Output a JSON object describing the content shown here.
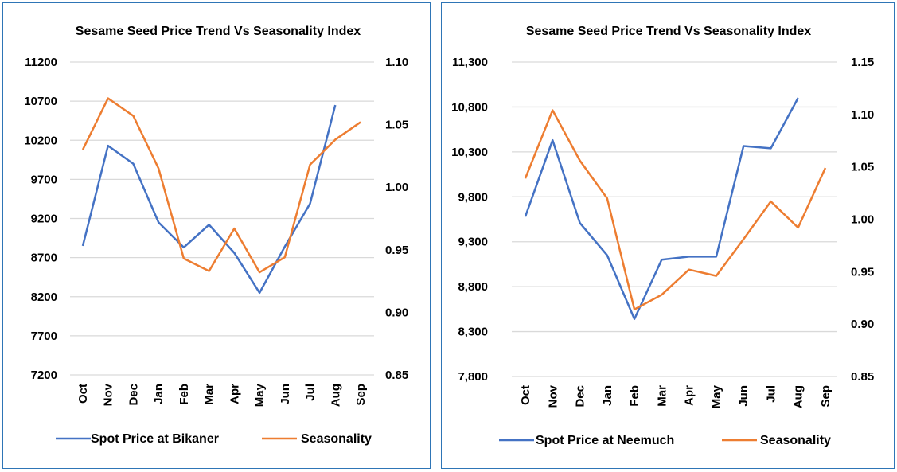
{
  "colors": {
    "price": "#4472C4",
    "seasonality": "#ED7D31",
    "grid": "#D9D9D9",
    "border": "#2E75B6"
  },
  "chart_data": [
    {
      "type": "line",
      "title": "Sesame Seed Price Trend  Vs Seasonality Index",
      "categories": [
        "Oct",
        "Nov",
        "Dec",
        "Jan",
        "Feb",
        "Mar",
        "Apr",
        "May",
        "Jun",
        "Jul",
        "Aug",
        "Sep"
      ],
      "y_left": {
        "range": [
          7200,
          11200
        ],
        "ticks": [
          "7200",
          "7700",
          "8200",
          "8700",
          "9200",
          "9700",
          "10200",
          "10700",
          "11200"
        ]
      },
      "y_right": {
        "range": [
          0.85,
          1.1
        ],
        "ticks": [
          "0.85",
          "0.90",
          "0.95",
          "1.00",
          "1.05",
          "1.10"
        ]
      },
      "grid": true,
      "legend_position": "bottom",
      "series": [
        {
          "name": "Spot Price at Bikaner",
          "axis": "left",
          "values": [
            8850,
            10130,
            9900,
            9150,
            8830,
            9120,
            8760,
            8250,
            8840,
            9390,
            10650,
            null
          ]
        },
        {
          "name": "Seasonality",
          "axis": "right",
          "values": [
            1.03,
            1.071,
            1.057,
            1.015,
            0.943,
            0.933,
            0.967,
            0.932,
            0.944,
            1.018,
            1.038,
            1.052
          ]
        }
      ]
    },
    {
      "type": "line",
      "title": "Sesame Seed Price Trend Vs Seasonality Index",
      "categories": [
        "Oct",
        "Nov",
        "Dec",
        "Jan",
        "Feb",
        "Mar",
        "Apr",
        "May",
        "Jun",
        "Jul",
        "Aug",
        "Sep"
      ],
      "y_left": {
        "range": [
          7800,
          11300
        ],
        "ticks": [
          "7,800",
          "8,300",
          "8,800",
          "9,300",
          "9,800",
          "10,300",
          "10,800",
          "11,300"
        ]
      },
      "y_right": {
        "range": [
          0.85,
          1.15
        ],
        "ticks": [
          "0.85",
          "0.90",
          "0.95",
          "1.00",
          "1.05",
          "1.10",
          "1.15"
        ]
      },
      "grid": true,
      "legend_position": "bottom",
      "series": [
        {
          "name": "Spot Price at Neemuch",
          "axis": "left",
          "values": [
            9580,
            10430,
            9510,
            9150,
            8440,
            9100,
            9135,
            9135,
            10365,
            10340,
            10900,
            null
          ]
        },
        {
          "name": "Seasonality",
          "axis": "right",
          "values": [
            1.039,
            1.104,
            1.056,
            1.02,
            0.914,
            0.928,
            0.952,
            0.946,
            0.981,
            1.017,
            0.992,
            1.049
          ]
        }
      ]
    }
  ]
}
